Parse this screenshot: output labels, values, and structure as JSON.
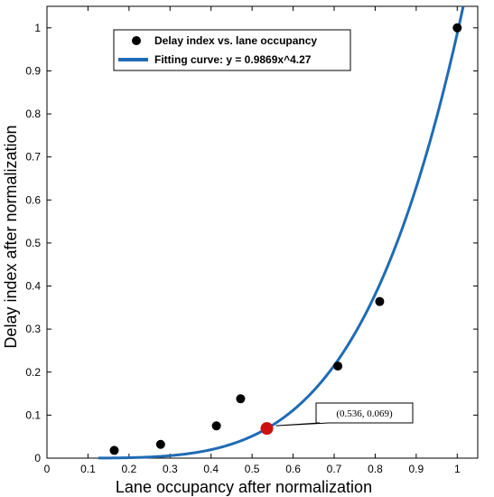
{
  "chart_data": {
    "type": "scatter",
    "xlabel": "Lane occupancy after normalization",
    "ylabel": "Delay index after normalization",
    "xlim": [
      0,
      1.05
    ],
    "ylim": [
      0,
      1.05
    ],
    "x_ticks": [
      "0",
      "0.1",
      "0.2",
      "0.3",
      "0.4",
      "0.5",
      "0.6",
      "0.7",
      "0.8",
      "0.9",
      "1"
    ],
    "y_ticks": [
      "0",
      "0.1",
      "0.2",
      "0.3",
      "0.4",
      "0.5",
      "0.6",
      "0.7",
      "0.8",
      "0.9",
      "1"
    ],
    "legend_position": "top-left",
    "grid": false,
    "series": [
      {
        "name": "Delay index vs. lane occupancy",
        "kind": "scatter",
        "color": "#000000",
        "points": [
          {
            "x": 0.164,
            "y": 0.018
          },
          {
            "x": 0.277,
            "y": 0.032
          },
          {
            "x": 0.413,
            "y": 0.075
          },
          {
            "x": 0.472,
            "y": 0.138
          },
          {
            "x": 0.709,
            "y": 0.214
          },
          {
            "x": 0.811,
            "y": 0.364
          },
          {
            "x": 1.0,
            "y": 1.0
          }
        ]
      },
      {
        "name": "Fitting curve: y = 0.9869x^4.27",
        "kind": "line",
        "color": "#1f6bb5",
        "coefficient": 0.9869,
        "exponent": 4.27,
        "x_range": [
          0.125,
          1.05
        ]
      }
    ],
    "highlight": {
      "x": 0.536,
      "y": 0.069,
      "color": "#cc1111",
      "label": "(0.536, 0.069)"
    }
  }
}
